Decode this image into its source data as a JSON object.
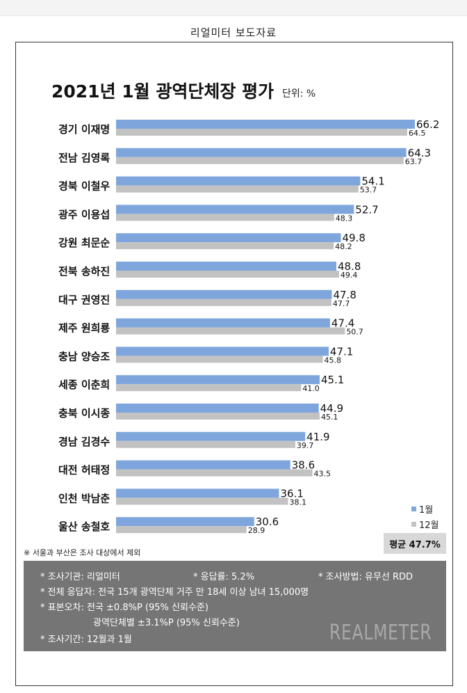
{
  "header": {
    "title": "리얼미터 보도자료"
  },
  "chart_data": {
    "type": "bar",
    "title": "2021년 1월 광역단체장 평가",
    "unit": "단위: %",
    "categories": [
      "경기 이재명",
      "전남 김영록",
      "경북 이철우",
      "광주 이용섭",
      "강원 최문순",
      "전북 송하진",
      "대구 권영진",
      "제주 원희룡",
      "충남 양승조",
      "세종 이춘희",
      "충북 이시종",
      "경남 김경수",
      "대전 허태정",
      "인천 박남춘",
      "울산 송철호"
    ],
    "series": [
      {
        "name": "1월",
        "color": "#7fa6dc",
        "values": [
          66.2,
          64.3,
          54.1,
          52.7,
          49.8,
          48.8,
          47.8,
          47.4,
          47.1,
          45.1,
          44.9,
          41.9,
          38.6,
          36.1,
          30.6
        ]
      },
      {
        "name": "12월",
        "color": "#c2c2c2",
        "values": [
          64.5,
          63.7,
          53.7,
          48.3,
          48.2,
          49.4,
          47.7,
          50.7,
          45.8,
          41.0,
          45.1,
          39.7,
          43.5,
          38.1,
          28.9
        ]
      }
    ],
    "value_labels": [
      [
        "66.2",
        "64.3",
        "54.1",
        "52.7",
        "49.8",
        "48.8",
        "47.8",
        "47.4",
        "47.1",
        "45.1",
        "44.9",
        "41.9",
        "38.6",
        "36.1",
        "30.6"
      ],
      [
        "64.5",
        "63.7",
        "53.7",
        "48.3",
        "48.2",
        "49.4",
        "47.7",
        "50.7",
        "45.8",
        "41.0",
        "45.1",
        "39.7",
        "43.5",
        "38.1",
        "28.9"
      ]
    ],
    "xlim": [
      0,
      66.2
    ],
    "grid": false,
    "legend": "bottom-right"
  },
  "legend": {
    "jan": "1월",
    "dec": "12월"
  },
  "average": "평균 47.7%",
  "footnote": "※ 서울과 부산은 조사 대상에서 제외",
  "info": {
    "agency": "* 조사기관: 리얼미터",
    "response_rate": "* 응답률: 5.2%",
    "method": "* 조사방법: 유무선 RDD",
    "respondents": "* 전체 응답자: 전국 15개 광역단체 거주 만 18세 이상 남녀 15,000명",
    "error_national": "* 표본오차: 전국 ±0.8%P (95% 신뢰수준)",
    "error_regional": "광역단체별 ±3.1%P (95% 신뢰수준)",
    "period": "* 조사기간: 12월과 1월"
  },
  "logo": "REALMETER"
}
